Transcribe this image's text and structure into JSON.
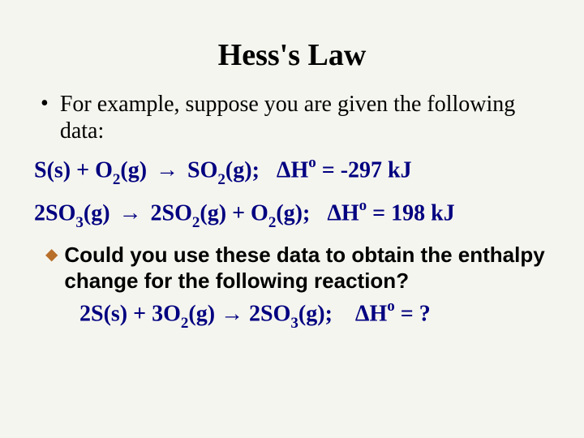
{
  "title": "Hess's Law",
  "intro": "For example, suppose you are given the following data:",
  "eq1": {
    "lhs1": "S(s)",
    "plus1": "+",
    "lhs2a": "O",
    "lhs2sub": "2",
    "lhs2b": "(g)",
    "arrow": "→",
    "rhs1a": "SO",
    "rhs1sub": "2",
    "rhs1b": "(g);",
    "dH": "ΔH",
    "sup": "o",
    "eq": "=",
    "val": "-297 kJ"
  },
  "eq2": {
    "lhs1a": "2SO",
    "lhs1sub": "3",
    "lhs1b": "(g)",
    "arrow": "→",
    "rhs1a": "2SO",
    "rhs1sub": "2",
    "rhs1b": "(g)",
    "plus": "+",
    "rhs2a": "O",
    "rhs2sub": "2",
    "rhs2b": "(g);",
    "dH": "ΔH",
    "sup": "o",
    "eq": "=",
    "val": "198 kJ"
  },
  "question_lead": "Could",
  "question_rest": " you use these data to obtain the enthalpy change for the following reaction?",
  "eq3": {
    "lhs1": "2S(s)",
    "plus1": "+",
    "lhs2a": "3O",
    "lhs2sub": "2",
    "lhs2b": "(g)",
    "arrow": "→",
    "rhs1a": "2SO",
    "rhs1sub": "3",
    "rhs1b": "(g);",
    "dH": "ΔH",
    "sup": "o",
    "eq": "=",
    "val": "?"
  }
}
